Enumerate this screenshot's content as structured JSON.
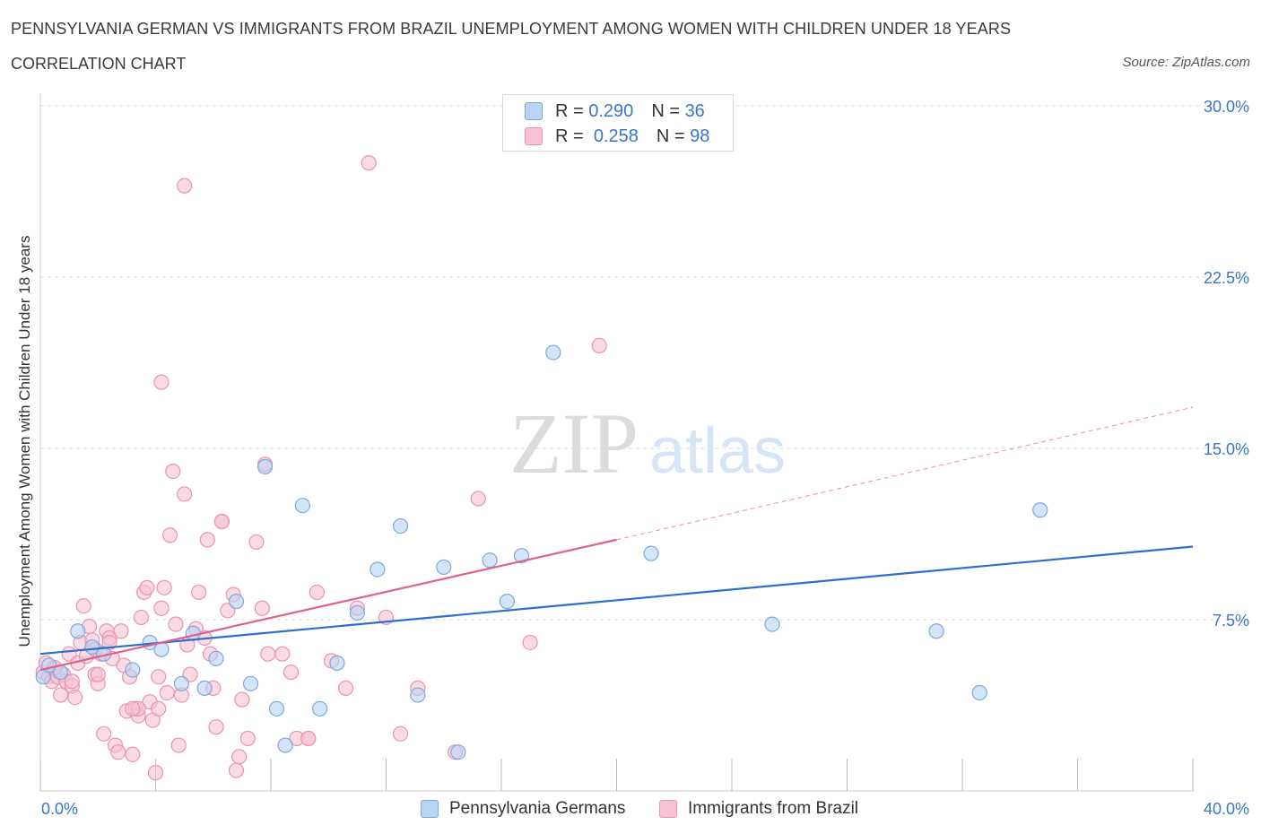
{
  "header": {
    "title": "PENNSYLVANIA GERMAN VS IMMIGRANTS FROM BRAZIL UNEMPLOYMENT AMONG WOMEN WITH CHILDREN UNDER 18 YEARS",
    "subtitle": "CORRELATION CHART",
    "source": "Source: ZipAtlas.com"
  },
  "watermark": {
    "zip": "ZIP",
    "atlas": "atlas"
  },
  "legend": {
    "rows": [
      {
        "r_label": "R =",
        "r_value": "0.290",
        "n_label": "N =",
        "n_value": "36"
      },
      {
        "r_label": "R =",
        "r_value": "0.258",
        "n_label": "N =",
        "n_value": "98"
      }
    ]
  },
  "bottom_legend": [
    {
      "label": "Pennsylvania Germans"
    },
    {
      "label": "Immigrants from Brazil"
    }
  ],
  "colors": {
    "blue_fill": "#b9d3f3",
    "blue_stroke": "#7ea9e0",
    "blue_line": "#2f6fcc",
    "pink_fill": "#f7c1d1",
    "pink_stroke": "#e994b0",
    "pink_line": "#e0608f",
    "axis_text": "#3a76c8",
    "grid": "#dddddd"
  },
  "chart_data": {
    "type": "scatter",
    "title": "PENNSYLVANIA GERMAN VS IMMIGRANTS FROM BRAZIL UNEMPLOYMENT AMONG WOMEN WITH CHILDREN UNDER 18 YEARS",
    "xlabel": "",
    "ylabel": "Unemployment Among Women with Children Under 18 years",
    "xlim": [
      0,
      40
    ],
    "ylim": [
      0,
      30
    ],
    "x_tick_labels": [
      "0.0%",
      "40.0%"
    ],
    "y_ticks": [
      7.5,
      15.0,
      22.5,
      30.0
    ],
    "y_tick_labels": [
      "7.5%",
      "15.0%",
      "22.5%",
      "30.0%"
    ],
    "grid": true,
    "legend_position": "top-center",
    "series": [
      {
        "name": "Pennsylvania Germans",
        "r": 0.29,
        "n": 36,
        "trend": {
          "x": [
            0,
            40
          ],
          "y": [
            6.0,
            10.7
          ],
          "dashed_to": null
        },
        "points": [
          [
            0.1,
            5.0
          ],
          [
            0.3,
            5.5
          ],
          [
            0.7,
            5.2
          ],
          [
            1.3,
            7.0
          ],
          [
            1.8,
            6.3
          ],
          [
            2.2,
            6.0
          ],
          [
            3.2,
            5.3
          ],
          [
            3.8,
            6.5
          ],
          [
            4.2,
            6.2
          ],
          [
            4.9,
            4.7
          ],
          [
            5.3,
            6.9
          ],
          [
            5.7,
            4.5
          ],
          [
            6.1,
            5.8
          ],
          [
            6.8,
            8.3
          ],
          [
            7.3,
            4.7
          ],
          [
            7.8,
            14.2
          ],
          [
            8.2,
            3.6
          ],
          [
            8.5,
            2.0
          ],
          [
            9.1,
            12.5
          ],
          [
            9.7,
            3.6
          ],
          [
            10.3,
            5.6
          ],
          [
            11.0,
            7.8
          ],
          [
            11.7,
            9.7
          ],
          [
            12.5,
            11.6
          ],
          [
            13.1,
            4.2
          ],
          [
            14.0,
            9.8
          ],
          [
            15.6,
            10.1
          ],
          [
            16.2,
            8.3
          ],
          [
            16.7,
            10.3
          ],
          [
            17.8,
            19.2
          ],
          [
            21.2,
            10.4
          ],
          [
            25.4,
            7.3
          ],
          [
            31.1,
            7.0
          ],
          [
            32.6,
            4.3
          ],
          [
            34.7,
            12.3
          ],
          [
            14.5,
            1.7
          ]
        ]
      },
      {
        "name": "Immigrants from Brazil",
        "r": 0.258,
        "n": 98,
        "trend": {
          "x": [
            0,
            20
          ],
          "y": [
            5.3,
            11.0
          ],
          "dashed_to": [
            40,
            16.8
          ]
        },
        "points": [
          [
            0.1,
            5.2
          ],
          [
            0.2,
            5.6
          ],
          [
            0.3,
            5.0
          ],
          [
            0.4,
            4.8
          ],
          [
            0.5,
            5.3
          ],
          [
            0.6,
            5.0
          ],
          [
            0.7,
            4.2
          ],
          [
            0.8,
            5.1
          ],
          [
            0.9,
            4.8
          ],
          [
            1.0,
            6.0
          ],
          [
            1.1,
            4.6
          ],
          [
            1.2,
            4.1
          ],
          [
            1.3,
            5.6
          ],
          [
            1.4,
            6.5
          ],
          [
            1.5,
            8.1
          ],
          [
            1.6,
            5.9
          ],
          [
            1.7,
            7.2
          ],
          [
            1.8,
            6.6
          ],
          [
            1.9,
            5.1
          ],
          [
            2.0,
            4.7
          ],
          [
            2.1,
            6.0
          ],
          [
            2.2,
            2.5
          ],
          [
            2.3,
            7.0
          ],
          [
            2.4,
            6.7
          ],
          [
            2.5,
            5.8
          ],
          [
            2.6,
            2.0
          ],
          [
            2.7,
            1.7
          ],
          [
            2.8,
            7.0
          ],
          [
            2.9,
            5.5
          ],
          [
            3.0,
            3.5
          ],
          [
            3.1,
            5.0
          ],
          [
            3.2,
            1.6
          ],
          [
            3.3,
            3.6
          ],
          [
            3.4,
            3.3
          ],
          [
            3.5,
            7.6
          ],
          [
            3.6,
            8.7
          ],
          [
            3.7,
            8.9
          ],
          [
            3.8,
            3.9
          ],
          [
            3.9,
            3.1
          ],
          [
            4.0,
            0.8
          ],
          [
            4.1,
            5.0
          ],
          [
            4.2,
            8.0
          ],
          [
            4.3,
            8.9
          ],
          [
            4.4,
            4.3
          ],
          [
            4.5,
            11.2
          ],
          [
            4.6,
            14.0
          ],
          [
            4.7,
            7.3
          ],
          [
            4.8,
            2.0
          ],
          [
            4.9,
            4.2
          ],
          [
            5.0,
            13.0
          ],
          [
            5.1,
            6.4
          ],
          [
            5.2,
            5.1
          ],
          [
            5.4,
            7.1
          ],
          [
            5.5,
            8.7
          ],
          [
            5.7,
            6.7
          ],
          [
            5.8,
            11.0
          ],
          [
            5.9,
            6.0
          ],
          [
            6.0,
            4.5
          ],
          [
            6.1,
            2.8
          ],
          [
            6.3,
            11.8
          ],
          [
            6.5,
            7.9
          ],
          [
            6.7,
            8.6
          ],
          [
            6.8,
            0.9
          ],
          [
            6.9,
            1.5
          ],
          [
            7.0,
            4.0
          ],
          [
            7.2,
            2.3
          ],
          [
            7.5,
            10.9
          ],
          [
            7.7,
            8.0
          ],
          [
            7.8,
            14.3
          ],
          [
            7.9,
            6.0
          ],
          [
            8.4,
            6.0
          ],
          [
            8.7,
            5.2
          ],
          [
            8.9,
            2.3
          ],
          [
            9.3,
            2.3
          ],
          [
            9.6,
            8.7
          ],
          [
            10.1,
            5.7
          ],
          [
            10.6,
            4.5
          ],
          [
            11.0,
            8.0
          ],
          [
            11.4,
            27.5
          ],
          [
            12.0,
            7.6
          ],
          [
            12.5,
            2.5
          ],
          [
            13.1,
            4.5
          ],
          [
            14.4,
            1.7
          ],
          [
            15.2,
            12.8
          ],
          [
            17.0,
            6.5
          ],
          [
            19.4,
            19.5
          ],
          [
            5.0,
            26.5
          ],
          [
            4.2,
            17.9
          ],
          [
            6.3,
            11.8
          ],
          [
            3.4,
            3.6
          ],
          [
            2.4,
            6.5
          ],
          [
            1.9,
            6.2
          ],
          [
            9.3,
            2.3
          ],
          [
            0.5,
            5.4
          ],
          [
            1.1,
            4.8
          ],
          [
            3.2,
            3.6
          ],
          [
            2.0,
            5.1
          ],
          [
            4.1,
            3.6
          ]
        ]
      }
    ]
  },
  "y_axis_label": "Unemployment Among Women with Children Under 18 years"
}
